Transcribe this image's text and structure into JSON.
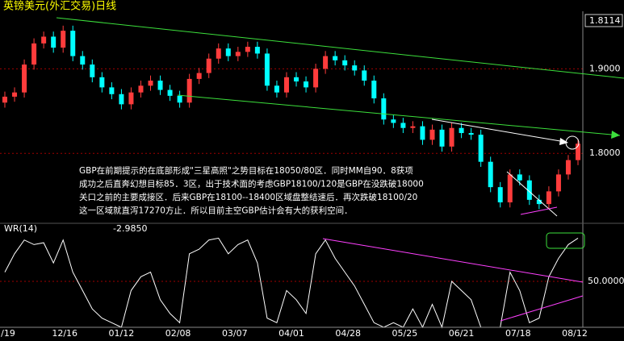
{
  "header": {
    "title": "英镑美元(外汇交易)日线"
  },
  "x_axis": {
    "labels": [
      "/19",
      "12/16",
      "01/12",
      "02/08",
      "03/07",
      "04/01",
      "04/28",
      "05/25",
      "06/21",
      "07/18",
      "08/12"
    ]
  },
  "chart_data": [
    {
      "type": "candlestick",
      "open": [
        1.86,
        1.867,
        1.872,
        1.905,
        1.93,
        1.938,
        1.925,
        1.945,
        1.915,
        1.905,
        1.89,
        1.878,
        1.87,
        1.858,
        1.872,
        1.88,
        1.886,
        1.875,
        1.868,
        1.86,
        1.888,
        1.895,
        1.912,
        1.924,
        1.915,
        1.92,
        1.926,
        1.918,
        1.88,
        1.872,
        1.89,
        1.885,
        1.878,
        1.9,
        1.915,
        1.91,
        1.904,
        1.898,
        1.886,
        1.865,
        1.84,
        1.836,
        1.83,
        1.832,
        1.816,
        1.828,
        1.808,
        1.83,
        1.824,
        1.822,
        1.79,
        1.76,
        1.742,
        1.775,
        1.768,
        1.745,
        1.74,
        1.755,
        1.775,
        1.792
      ],
      "high": [
        1.873,
        1.878,
        1.911,
        1.936,
        1.944,
        1.944,
        1.951,
        1.951,
        1.921,
        1.911,
        1.896,
        1.884,
        1.876,
        1.878,
        1.886,
        1.892,
        1.892,
        1.881,
        1.874,
        1.894,
        1.901,
        1.918,
        1.93,
        1.93,
        1.926,
        1.932,
        1.932,
        1.924,
        1.886,
        1.896,
        1.896,
        1.891,
        1.906,
        1.921,
        1.921,
        1.916,
        1.91,
        1.904,
        1.892,
        1.871,
        1.846,
        1.842,
        1.838,
        1.838,
        1.834,
        1.834,
        1.836,
        1.836,
        1.83,
        1.828,
        1.796,
        1.766,
        1.781,
        1.781,
        1.774,
        1.751,
        1.761,
        1.781,
        1.798,
        1.817
      ],
      "low": [
        1.854,
        1.861,
        1.866,
        1.899,
        1.924,
        1.919,
        1.919,
        1.909,
        1.899,
        1.884,
        1.872,
        1.864,
        1.852,
        1.852,
        1.866,
        1.874,
        1.869,
        1.862,
        1.854,
        1.854,
        1.882,
        1.889,
        1.906,
        1.909,
        1.909,
        1.914,
        1.912,
        1.874,
        1.866,
        1.866,
        1.879,
        1.872,
        1.872,
        1.894,
        1.904,
        1.898,
        1.892,
        1.88,
        1.859,
        1.834,
        1.83,
        1.824,
        1.824,
        1.81,
        1.81,
        1.802,
        1.802,
        1.818,
        1.816,
        1.784,
        1.754,
        1.736,
        1.736,
        1.762,
        1.739,
        1.734,
        1.734,
        1.749,
        1.769,
        1.786
      ],
      "close": [
        1.867,
        1.872,
        1.905,
        1.93,
        1.938,
        1.925,
        1.945,
        1.915,
        1.905,
        1.89,
        1.878,
        1.87,
        1.858,
        1.872,
        1.88,
        1.886,
        1.875,
        1.868,
        1.86,
        1.888,
        1.895,
        1.912,
        1.924,
        1.915,
        1.92,
        1.926,
        1.918,
        1.88,
        1.872,
        1.89,
        1.885,
        1.878,
        1.9,
        1.915,
        1.91,
        1.904,
        1.898,
        1.886,
        1.865,
        1.84,
        1.836,
        1.83,
        1.832,
        1.816,
        1.828,
        1.808,
        1.83,
        1.824,
        1.822,
        1.79,
        1.76,
        1.742,
        1.775,
        1.768,
        1.745,
        1.74,
        1.755,
        1.775,
        1.792,
        1.8114
      ],
      "up_color": "#ff3c3c",
      "down_color": "#00ffff",
      "ylim": [
        1.722,
        1.968
      ],
      "yticks": [
        {
          "value": 1.9,
          "label": "1.9000"
        },
        {
          "value": 1.8,
          "label": "1.8000"
        }
      ],
      "grid": true,
      "last_price": 1.8114,
      "annotation": [
        "GBP在前期提示的在底部形成\"三星高照\"之势目标在18050/80区．同时MM自90．8获项",
        "成功之后直奔幻想目标85．3区，出于技术面的考虑GBP18100/120是GBP在没跌破18000",
        "关口之前的主要成接区．后来GBP在18100--18400区域盘整结速后．再次跌破18100/20",
        "这一区域就直泻17270方止．所以目前主空GBP估计会有大的获利空间．"
      ]
    },
    {
      "type": "line",
      "name": "WR(14)",
      "current": {
        "value": -2.985,
        "label": "-2.9850"
      },
      "color": "#ffffff",
      "values": [
        40,
        20,
        5,
        10,
        8,
        30,
        5,
        40,
        60,
        80,
        90,
        95,
        100,
        60,
        45,
        40,
        70,
        85,
        95,
        20,
        15,
        5,
        3,
        20,
        10,
        5,
        30,
        90,
        95,
        60,
        70,
        85,
        20,
        5,
        25,
        40,
        55,
        75,
        95,
        100,
        95,
        100,
        80,
        100,
        75,
        100,
        50,
        60,
        70,
        100,
        100,
        100,
        40,
        60,
        95,
        90,
        45,
        25,
        10,
        3
      ],
      "ylim": [
        100,
        0
      ],
      "yticks": [
        {
          "value": 50,
          "label": "50.0000"
        }
      ],
      "grid": true
    }
  ]
}
